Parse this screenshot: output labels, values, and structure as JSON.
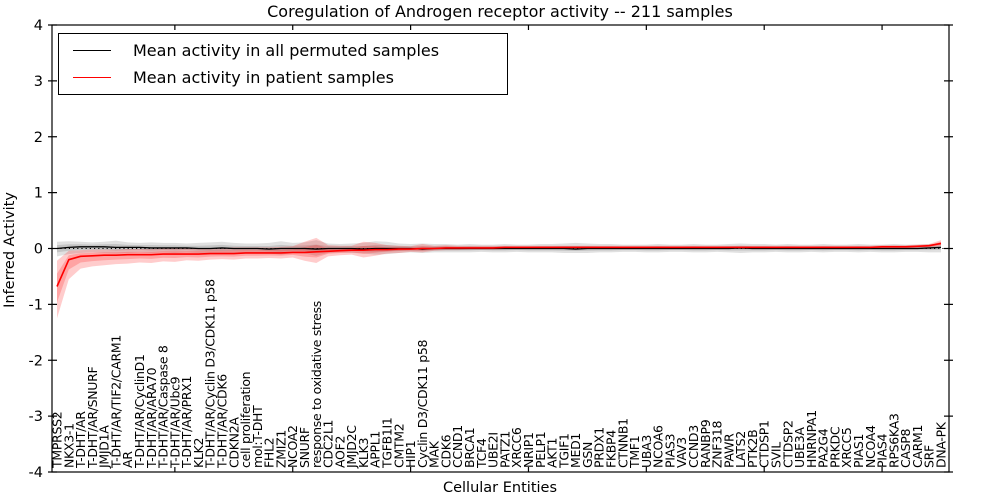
{
  "figure": {
    "title": "Coregulation of Androgen receptor activity -- 211 samples",
    "xlabel": "Cellular Entities",
    "ylabel": "Inferred Activity"
  },
  "chart_data": {
    "type": "line",
    "title": "Coregulation of Androgen receptor activity -- 211 samples",
    "xlabel": "Cellular Entities",
    "ylabel": "Inferred Activity",
    "ylim": [
      -4,
      4
    ],
    "yticks": [
      4,
      3,
      2,
      1,
      0,
      -1,
      -2,
      -3,
      -4
    ],
    "grid": false,
    "legend_position": "upper left",
    "zero_line_style": "dotted",
    "categories": [
      "TMPRSS2",
      "NKX3-1",
      "T-DHT/AR",
      "T-DHT/AR/SNURF",
      "JMJD1A",
      "T-DHT/AR/TIF2/CARM1",
      "AR",
      "T-DHT/AR/CyclinD1",
      "T-DHT/AR/ARA70",
      "T-DHT/AR/Caspase 8",
      "T-DHT/AR/Ubc9",
      "T-DHT/AR/PRX1",
      "KLK2",
      "T-DHT/AR/Cyclin D3/CDK11 p58",
      "T-DHT/AR/CDK6",
      "CDKN2A",
      "cell proliferation",
      "mol:T-DHT",
      "FHL2",
      "ZMIZ1",
      "NCOA2",
      "SNURF",
      "response to oxidative stress",
      "CDC2L1",
      "AOF2",
      "JMJD2C",
      "KLK3",
      "APPL1",
      "TGFB1I1",
      "CMTM2",
      "HIP1",
      "Cyclin D3/CDK11 p58",
      "MAK",
      "CDK6",
      "CCND1",
      "BRCA1",
      "TCF4",
      "UBE2I",
      "PATZ1",
      "XRCC6",
      "NRIP1",
      "PELP1",
      "AKT1",
      "TGIF1",
      "MED1",
      "GSN",
      "PRDX1",
      "FKBP4",
      "CTNNB1",
      "TMF1",
      "UBA3",
      "NCOA6",
      "PIAS3",
      "VAV3",
      "CCND3",
      "RANBP9",
      "ZNF318",
      "PAWR",
      "LATS2",
      "PTK2B",
      "CTDSP1",
      "SVIL",
      "CTDSP2",
      "UBE3A",
      "HNRNPA1",
      "PA2G4",
      "PRKDC",
      "XRCC5",
      "PIAS1",
      "NCOA4",
      "PIAS4",
      "RPS6KA3",
      "CASP8",
      "CARM1",
      "SRF",
      "DNA-PK"
    ],
    "series": [
      {
        "name": "Mean activity in all permuted samples",
        "color": "#000000",
        "band_alpha": 0.12,
        "line_width": 1.3,
        "values": [
          0.0,
          0.02,
          0.03,
          0.03,
          0.03,
          0.02,
          0.02,
          0.02,
          0.01,
          0.01,
          0.01,
          0.01,
          0.0,
          0.0,
          0.01,
          0.0,
          0.0,
          0.0,
          -0.01,
          0.0,
          0.0,
          0.0,
          -0.01,
          0.0,
          0.0,
          0.0,
          -0.01,
          0.0,
          0.0,
          0.0,
          0.0,
          -0.01,
          0.0,
          0.0,
          0.0,
          0.0,
          0.0,
          0.0,
          0.0,
          0.0,
          0.0,
          0.0,
          0.0,
          0.0,
          -0.01,
          0.0,
          0.0,
          0.0,
          0.0,
          0.0,
          0.0,
          0.0,
          0.0,
          0.0,
          0.0,
          0.0,
          0.0,
          0.0,
          0.01,
          0.0,
          0.0,
          0.0,
          0.0,
          0.0,
          0.0,
          0.0,
          0.0,
          0.0,
          0.0,
          0.0,
          0.0,
          0.0,
          0.0,
          0.0,
          0.01,
          0.02
        ],
        "upper": [
          0.12,
          0.13,
          0.12,
          0.11,
          0.12,
          0.14,
          0.11,
          0.1,
          0.11,
          0.1,
          0.1,
          0.09,
          0.1,
          0.11,
          0.12,
          0.1,
          0.09,
          0.09,
          0.1,
          0.13,
          0.1,
          0.11,
          0.15,
          0.09,
          0.08,
          0.09,
          0.1,
          0.13,
          0.12,
          0.09,
          0.08,
          0.09,
          0.08,
          0.08,
          0.07,
          0.08,
          0.07,
          0.07,
          0.08,
          0.07,
          0.07,
          0.08,
          0.08,
          0.09,
          0.1,
          0.09,
          0.08,
          0.08,
          0.07,
          0.07,
          0.07,
          0.08,
          0.07,
          0.07,
          0.08,
          0.07,
          0.07,
          0.08,
          0.09,
          0.08,
          0.08,
          0.07,
          0.08,
          0.07,
          0.07,
          0.08,
          0.07,
          0.07,
          0.08,
          0.07,
          0.07,
          0.08,
          0.07,
          0.07,
          0.08,
          0.08
        ],
        "lower": [
          -0.14,
          -0.1,
          -0.08,
          -0.07,
          -0.08,
          -0.09,
          -0.08,
          -0.07,
          -0.08,
          -0.07,
          -0.08,
          -0.07,
          -0.08,
          -0.09,
          -0.1,
          -0.08,
          -0.07,
          -0.07,
          -0.09,
          -0.11,
          -0.08,
          -0.09,
          -0.13,
          -0.08,
          -0.07,
          -0.08,
          -0.09,
          -0.11,
          -0.1,
          -0.08,
          -0.07,
          -0.08,
          -0.07,
          -0.07,
          -0.07,
          -0.07,
          -0.06,
          -0.07,
          -0.07,
          -0.06,
          -0.07,
          -0.07,
          -0.07,
          -0.08,
          -0.08,
          -0.08,
          -0.07,
          -0.07,
          -0.06,
          -0.06,
          -0.07,
          -0.07,
          -0.06,
          -0.06,
          -0.07,
          -0.07,
          -0.06,
          -0.07,
          -0.08,
          -0.07,
          -0.07,
          -0.06,
          -0.07,
          -0.07,
          -0.06,
          -0.07,
          -0.06,
          -0.06,
          -0.07,
          -0.06,
          -0.07,
          -0.07,
          -0.06,
          -0.06,
          -0.07,
          -0.07
        ]
      },
      {
        "name": "Mean activity in patient samples",
        "color": "#ff0000",
        "band_alpha": 0.2,
        "line_width": 1.6,
        "values": [
          -0.68,
          -0.2,
          -0.14,
          -0.13,
          -0.12,
          -0.12,
          -0.11,
          -0.11,
          -0.11,
          -0.1,
          -0.1,
          -0.1,
          -0.1,
          -0.09,
          -0.09,
          -0.09,
          -0.08,
          -0.08,
          -0.08,
          -0.08,
          -0.07,
          -0.07,
          -0.06,
          -0.05,
          -0.04,
          -0.03,
          -0.03,
          -0.02,
          -0.02,
          -0.01,
          -0.01,
          0.0,
          0.0,
          0.01,
          0.01,
          0.01,
          0.01,
          0.01,
          0.02,
          0.02,
          0.02,
          0.02,
          0.02,
          0.02,
          0.02,
          0.02,
          0.02,
          0.02,
          0.02,
          0.02,
          0.02,
          0.02,
          0.02,
          0.02,
          0.02,
          0.02,
          0.02,
          0.02,
          0.02,
          0.02,
          0.02,
          0.02,
          0.02,
          0.02,
          0.02,
          0.02,
          0.02,
          0.02,
          0.02,
          0.02,
          0.03,
          0.03,
          0.03,
          0.04,
          0.05,
          0.09
        ],
        "upper": [
          -0.22,
          -0.04,
          -0.03,
          -0.02,
          -0.02,
          -0.02,
          -0.01,
          -0.01,
          -0.01,
          0.0,
          0.0,
          0.0,
          0.01,
          0.01,
          0.01,
          0.02,
          0.02,
          0.02,
          0.02,
          0.03,
          0.04,
          0.12,
          0.19,
          0.06,
          0.05,
          0.05,
          0.12,
          0.1,
          0.06,
          0.05,
          0.04,
          0.08,
          0.05,
          0.06,
          0.05,
          0.05,
          0.05,
          0.05,
          0.05,
          0.05,
          0.05,
          0.05,
          0.05,
          0.05,
          0.05,
          0.05,
          0.05,
          0.05,
          0.05,
          0.05,
          0.05,
          0.05,
          0.05,
          0.05,
          0.05,
          0.05,
          0.05,
          0.05,
          0.05,
          0.05,
          0.05,
          0.05,
          0.05,
          0.05,
          0.05,
          0.05,
          0.05,
          0.05,
          0.05,
          0.05,
          0.06,
          0.06,
          0.06,
          0.07,
          0.08,
          0.15
        ],
        "lower": [
          -1.25,
          -0.55,
          -0.36,
          -0.32,
          -0.3,
          -0.28,
          -0.27,
          -0.25,
          -0.26,
          -0.23,
          -0.24,
          -0.21,
          -0.22,
          -0.2,
          -0.19,
          -0.2,
          -0.18,
          -0.18,
          -0.17,
          -0.18,
          -0.16,
          -0.22,
          -0.26,
          -0.14,
          -0.12,
          -0.11,
          -0.16,
          -0.13,
          -0.09,
          -0.08,
          -0.06,
          -0.07,
          -0.04,
          -0.03,
          -0.03,
          -0.02,
          -0.02,
          -0.02,
          -0.01,
          -0.01,
          -0.01,
          -0.01,
          -0.01,
          -0.01,
          -0.01,
          -0.01,
          -0.01,
          -0.01,
          -0.01,
          -0.01,
          -0.01,
          -0.01,
          -0.01,
          -0.01,
          -0.01,
          -0.01,
          -0.01,
          -0.01,
          -0.01,
          -0.01,
          -0.01,
          -0.01,
          -0.01,
          -0.01,
          -0.01,
          -0.01,
          -0.01,
          -0.01,
          -0.01,
          -0.01,
          0.0,
          0.0,
          0.0,
          0.01,
          0.02,
          0.04
        ]
      }
    ]
  }
}
